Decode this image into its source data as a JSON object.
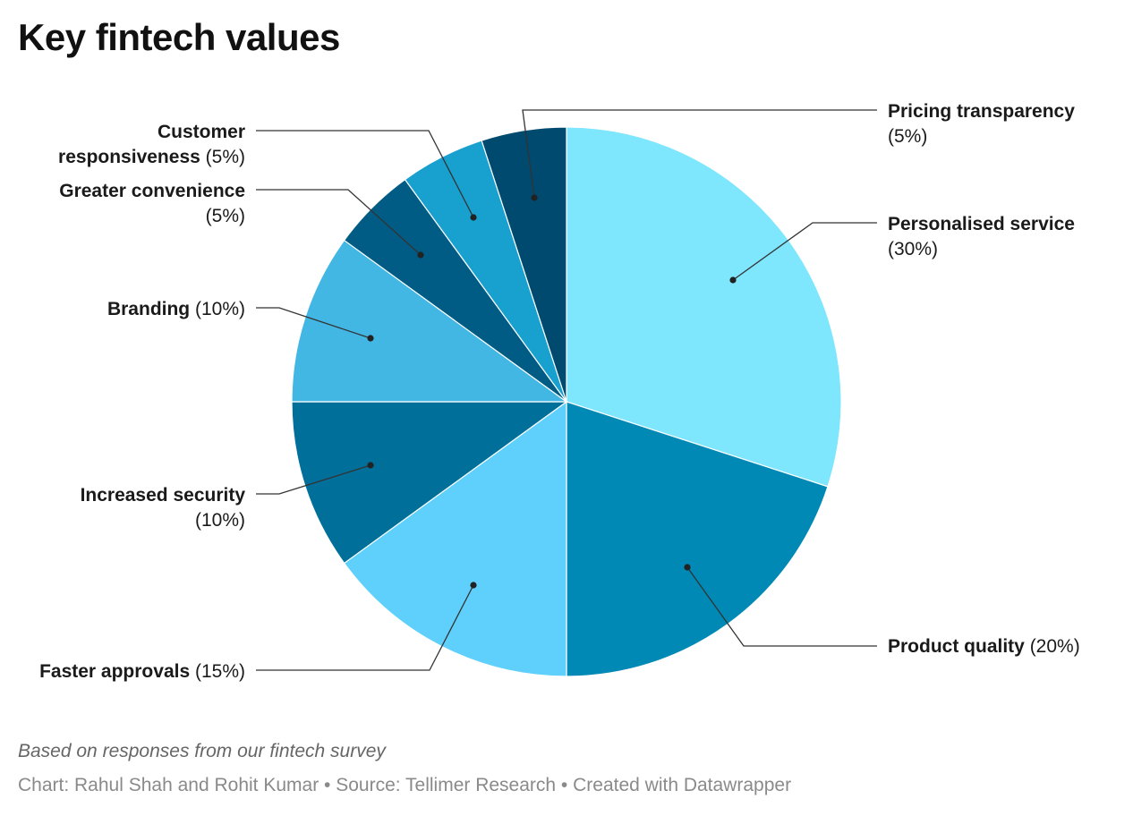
{
  "title": "Key fintech values",
  "notes": "Based on responses from our fintech survey",
  "credits": "Chart: Rahul Shah and Rohit Kumar • Source: Tellimer Research • Created with Datawrapper",
  "chart_data": {
    "type": "pie",
    "title": "Key fintech values",
    "slices": [
      {
        "name": "Personalised service",
        "label": [
          "Personalised service",
          "(30%)"
        ],
        "value": 30,
        "color": "#7ee6fd"
      },
      {
        "name": "Product quality",
        "label": [
          "Product quality (20%)"
        ],
        "value": 20,
        "color": "#0089b5"
      },
      {
        "name": "Faster approvals",
        "label": [
          "Faster approvals (15%)"
        ],
        "value": 15,
        "color": "#5fd0fb"
      },
      {
        "name": "Increased security",
        "label": [
          "Increased security",
          "(10%)"
        ],
        "value": 10,
        "color": "#00709b"
      },
      {
        "name": "Branding",
        "label": [
          "Branding (10%)"
        ],
        "value": 10,
        "color": "#42b7e4"
      },
      {
        "name": "Greater convenience",
        "label": [
          "Greater convenience",
          "(5%)"
        ],
        "value": 5,
        "color": "#005c85"
      },
      {
        "name": "Customer responsiveness",
        "label": [
          "Customer",
          "responsiveness (5%)"
        ],
        "value": 5,
        "color": "#18a0cf"
      },
      {
        "name": "Pricing transparency",
        "label": [
          "Pricing transparency",
          "(5%)"
        ],
        "value": 5,
        "color": "#004a70"
      }
    ],
    "start_angle": "12 o'clock",
    "direction": "clockwise"
  }
}
